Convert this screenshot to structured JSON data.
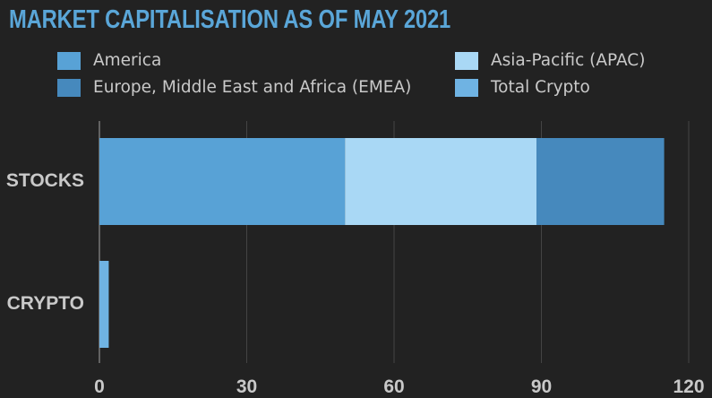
{
  "chart_data": {
    "type": "bar",
    "orientation": "horizontal",
    "stacked": true,
    "title": "MARKET CAPITALISATION AS OF MAY 2021",
    "categories": [
      "STOCKS",
      "CRYPTO"
    ],
    "series": [
      {
        "name": "America",
        "values": [
          50,
          0
        ],
        "color": "#58a2d6"
      },
      {
        "name": "Asia-Pacific (APAC)",
        "values": [
          39,
          0
        ],
        "color": "#a9d8f5"
      },
      {
        "name": "Europe, Middle East and Africa (EMEA)",
        "values": [
          26,
          0
        ],
        "color": "#4689bd"
      },
      {
        "name": "Total Crypto",
        "values": [
          0,
          1.9
        ],
        "color": "#6fb3e3"
      }
    ],
    "xlim": [
      0,
      120
    ],
    "xticks": [
      "0",
      "30",
      "60",
      "90",
      "120"
    ],
    "grid": true,
    "legend_position": "top"
  }
}
